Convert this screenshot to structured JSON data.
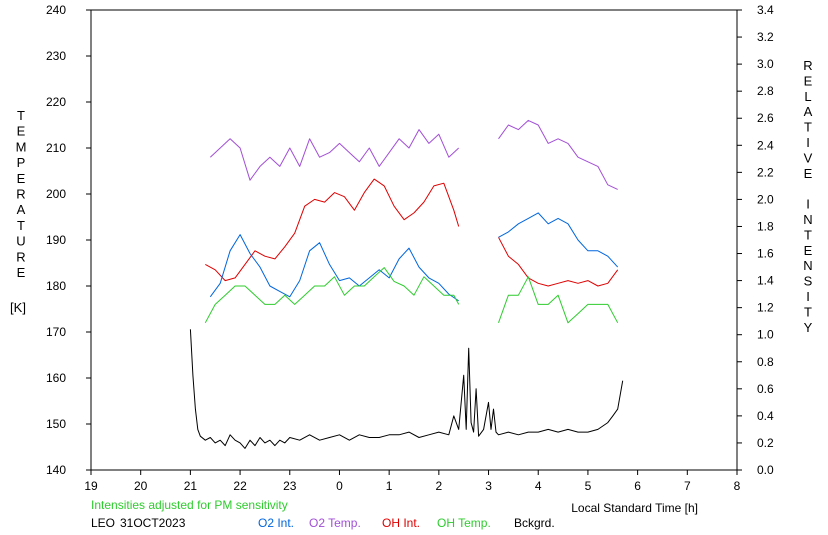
{
  "chart_data": {
    "type": "line",
    "station": "LEO",
    "date": "31OCT2023",
    "note": "Intensities adjusted for PM sensitivity",
    "xlabel": "Local Standard Time [h]",
    "x_ticks": [
      "19",
      "20",
      "21",
      "22",
      "23",
      "0",
      "1",
      "2",
      "3",
      "4",
      "5",
      "6",
      "7",
      "8"
    ],
    "xlim": [
      19,
      32
    ],
    "y_left": {
      "label_letters": [
        "T",
        "E",
        "M",
        "P",
        "E",
        "R",
        "A",
        "T",
        "U",
        "R",
        "E"
      ],
      "unit": "[K]",
      "ticks": [
        "140",
        "150",
        "160",
        "170",
        "180",
        "190",
        "200",
        "210",
        "220",
        "230",
        "240"
      ],
      "lim": [
        140,
        240
      ]
    },
    "y_right": {
      "label_letters": [
        "R",
        "E",
        "L",
        "A",
        "T",
        "I",
        "V",
        "E",
        "",
        "I",
        "N",
        "T",
        "E",
        "N",
        "S",
        "I",
        "T",
        "Y"
      ],
      "ticks": [
        "0.0",
        "0.2",
        "0.4",
        "0.6",
        "0.8",
        "1.0",
        "1.2",
        "1.4",
        "1.6",
        "1.8",
        "2.0",
        "2.2",
        "2.4",
        "2.6",
        "2.8",
        "3.0",
        "3.2",
        "3.4"
      ],
      "lim": [
        0.0,
        3.4
      ]
    },
    "legend": [
      {
        "label": "O2 Int.",
        "color": "#0066dd"
      },
      {
        "label": "O2 Temp.",
        "color": "#a24fd6"
      },
      {
        "label": "OH Int.",
        "color": "#dd0000"
      },
      {
        "label": "OH Temp.",
        "color": "#2ecc2e"
      },
      {
        "label": "Bckgrd.",
        "color": "#000000"
      }
    ],
    "series": [
      {
        "name": "O2 Temp.",
        "axis": "left",
        "color": "#a24fd6",
        "segments": [
          {
            "x": [
              21.4,
              21.6,
              21.8,
              22.0,
              22.2,
              22.4,
              22.6,
              22.8,
              23.0,
              23.2,
              23.4,
              23.6,
              23.8,
              24.0,
              24.2,
              24.4,
              24.6,
              24.8,
              25.0,
              25.2,
              25.4,
              25.6,
              25.8,
              26.0,
              26.2,
              26.4
            ],
            "y": [
              208,
              210,
              212,
              210,
              203,
              206,
              208,
              206,
              210,
              206,
              212,
              208,
              209,
              211,
              209,
              207,
              210,
              206,
              209,
              212,
              210,
              214,
              211,
              213,
              208,
              210
            ]
          },
          {
            "x": [
              27.2,
              27.4,
              27.6,
              27.8,
              28.0,
              28.2,
              28.4,
              28.6,
              28.8,
              29.0,
              29.2,
              29.4,
              29.6
            ],
            "y": [
              212,
              215,
              214,
              216,
              215,
              211,
              212,
              211,
              208,
              207,
              206,
              202,
              201
            ]
          }
        ]
      },
      {
        "name": "OH Int.",
        "axis": "right",
        "color": "#dd0000",
        "segments": [
          {
            "x": [
              21.3,
              21.5,
              21.7,
              21.9,
              22.1,
              22.3,
              22.5,
              22.7,
              22.9,
              23.1,
              23.3,
              23.5,
              23.7,
              23.9,
              24.1,
              24.3,
              24.5,
              24.7,
              24.9,
              25.1,
              25.3,
              25.5,
              25.7,
              25.9,
              26.1,
              26.3,
              26.4
            ],
            "y": [
              1.52,
              1.48,
              1.4,
              1.42,
              1.52,
              1.62,
              1.58,
              1.56,
              1.65,
              1.75,
              1.95,
              2.0,
              1.98,
              2.05,
              2.02,
              1.92,
              2.05,
              2.15,
              2.1,
              1.95,
              1.85,
              1.9,
              1.98,
              2.1,
              2.12,
              1.92,
              1.8
            ]
          },
          {
            "x": [
              27.2,
              27.4,
              27.6,
              27.8,
              28.0,
              28.2,
              28.4,
              28.6,
              28.8,
              29.0,
              29.2,
              29.4,
              29.6
            ],
            "y": [
              1.72,
              1.58,
              1.52,
              1.42,
              1.38,
              1.36,
              1.38,
              1.4,
              1.38,
              1.4,
              1.36,
              1.38,
              1.48
            ]
          }
        ]
      },
      {
        "name": "O2 Int.",
        "axis": "right",
        "color": "#0066dd",
        "segments": [
          {
            "x": [
              21.4,
              21.6,
              21.8,
              22.0,
              22.2,
              22.4,
              22.6,
              22.8,
              23.0,
              23.2,
              23.4,
              23.6,
              23.8,
              24.0,
              24.2,
              24.4,
              24.6,
              24.8,
              25.0,
              25.2,
              25.4,
              25.6,
              25.8,
              26.0,
              26.2,
              26.4
            ],
            "y": [
              1.28,
              1.38,
              1.62,
              1.74,
              1.6,
              1.5,
              1.36,
              1.32,
              1.28,
              1.4,
              1.62,
              1.68,
              1.52,
              1.4,
              1.42,
              1.36,
              1.42,
              1.48,
              1.42,
              1.56,
              1.64,
              1.5,
              1.42,
              1.38,
              1.3,
              1.25
            ]
          },
          {
            "x": [
              27.2,
              27.4,
              27.6,
              27.8,
              28.0,
              28.2,
              28.4,
              28.6,
              28.8,
              29.0,
              29.2,
              29.4,
              29.6
            ],
            "y": [
              1.72,
              1.76,
              1.82,
              1.86,
              1.9,
              1.82,
              1.86,
              1.82,
              1.7,
              1.62,
              1.62,
              1.58,
              1.5
            ]
          }
        ]
      },
      {
        "name": "OH Temp.",
        "axis": "left",
        "color": "#2ecc2e",
        "segments": [
          {
            "x": [
              21.3,
              21.5,
              21.7,
              21.9,
              22.1,
              22.3,
              22.5,
              22.7,
              22.9,
              23.1,
              23.3,
              23.5,
              23.7,
              23.9,
              24.1,
              24.3,
              24.5,
              24.7,
              24.9,
              25.1,
              25.3,
              25.5,
              25.7,
              25.9,
              26.1,
              26.3,
              26.4
            ],
            "y": [
              172,
              176,
              178,
              180,
              180,
              178,
              176,
              176,
              178,
              176,
              178,
              180,
              180,
              182,
              178,
              180,
              180,
              182,
              184,
              181,
              180,
              178,
              182,
              180,
              178,
              178,
              176
            ]
          },
          {
            "x": [
              27.2,
              27.4,
              27.6,
              27.8,
              28.0,
              28.2,
              28.4,
              28.6,
              28.8,
              29.0,
              29.2,
              29.4,
              29.6
            ],
            "y": [
              172,
              178,
              178,
              182,
              176,
              176,
              178,
              172,
              174,
              176,
              176,
              176,
              172
            ]
          }
        ]
      },
      {
        "name": "Bckgrd.",
        "axis": "right",
        "color": "#000000",
        "segments": [
          {
            "x": [
              21.0,
              21.05,
              21.1,
              21.15,
              21.2,
              21.3,
              21.4,
              21.5,
              21.6,
              21.7,
              21.8,
              21.9,
              22.0,
              22.1,
              22.2,
              22.3,
              22.4,
              22.5,
              22.6,
              22.7,
              22.8,
              22.9,
              23.0,
              23.2,
              23.4,
              23.6,
              23.8,
              24.0,
              24.2,
              24.4,
              24.6,
              24.8,
              25.0,
              25.2,
              25.4,
              25.6,
              25.8,
              26.0,
              26.2,
              26.3,
              26.4,
              26.5,
              26.55,
              26.6,
              26.65,
              26.7,
              26.75,
              26.8,
              26.9,
              27.0,
              27.05,
              27.1,
              27.15,
              27.2,
              27.4,
              27.6,
              27.8,
              28.0,
              28.2,
              28.4,
              28.6,
              28.8,
              29.0,
              29.2,
              29.4,
              29.5,
              29.6,
              29.7
            ],
            "y": [
              1.04,
              0.7,
              0.45,
              0.3,
              0.25,
              0.22,
              0.24,
              0.2,
              0.22,
              0.18,
              0.26,
              0.22,
              0.2,
              0.16,
              0.22,
              0.18,
              0.24,
              0.2,
              0.22,
              0.18,
              0.22,
              0.2,
              0.24,
              0.22,
              0.26,
              0.22,
              0.24,
              0.26,
              0.22,
              0.26,
              0.24,
              0.24,
              0.26,
              0.26,
              0.28,
              0.24,
              0.26,
              0.28,
              0.26,
              0.4,
              0.3,
              0.7,
              0.3,
              0.9,
              0.35,
              0.28,
              0.6,
              0.25,
              0.3,
              0.5,
              0.3,
              0.45,
              0.28,
              0.26,
              0.28,
              0.26,
              0.28,
              0.28,
              0.3,
              0.28,
              0.3,
              0.28,
              0.28,
              0.3,
              0.35,
              0.4,
              0.45,
              0.66
            ]
          }
        ]
      }
    ]
  }
}
